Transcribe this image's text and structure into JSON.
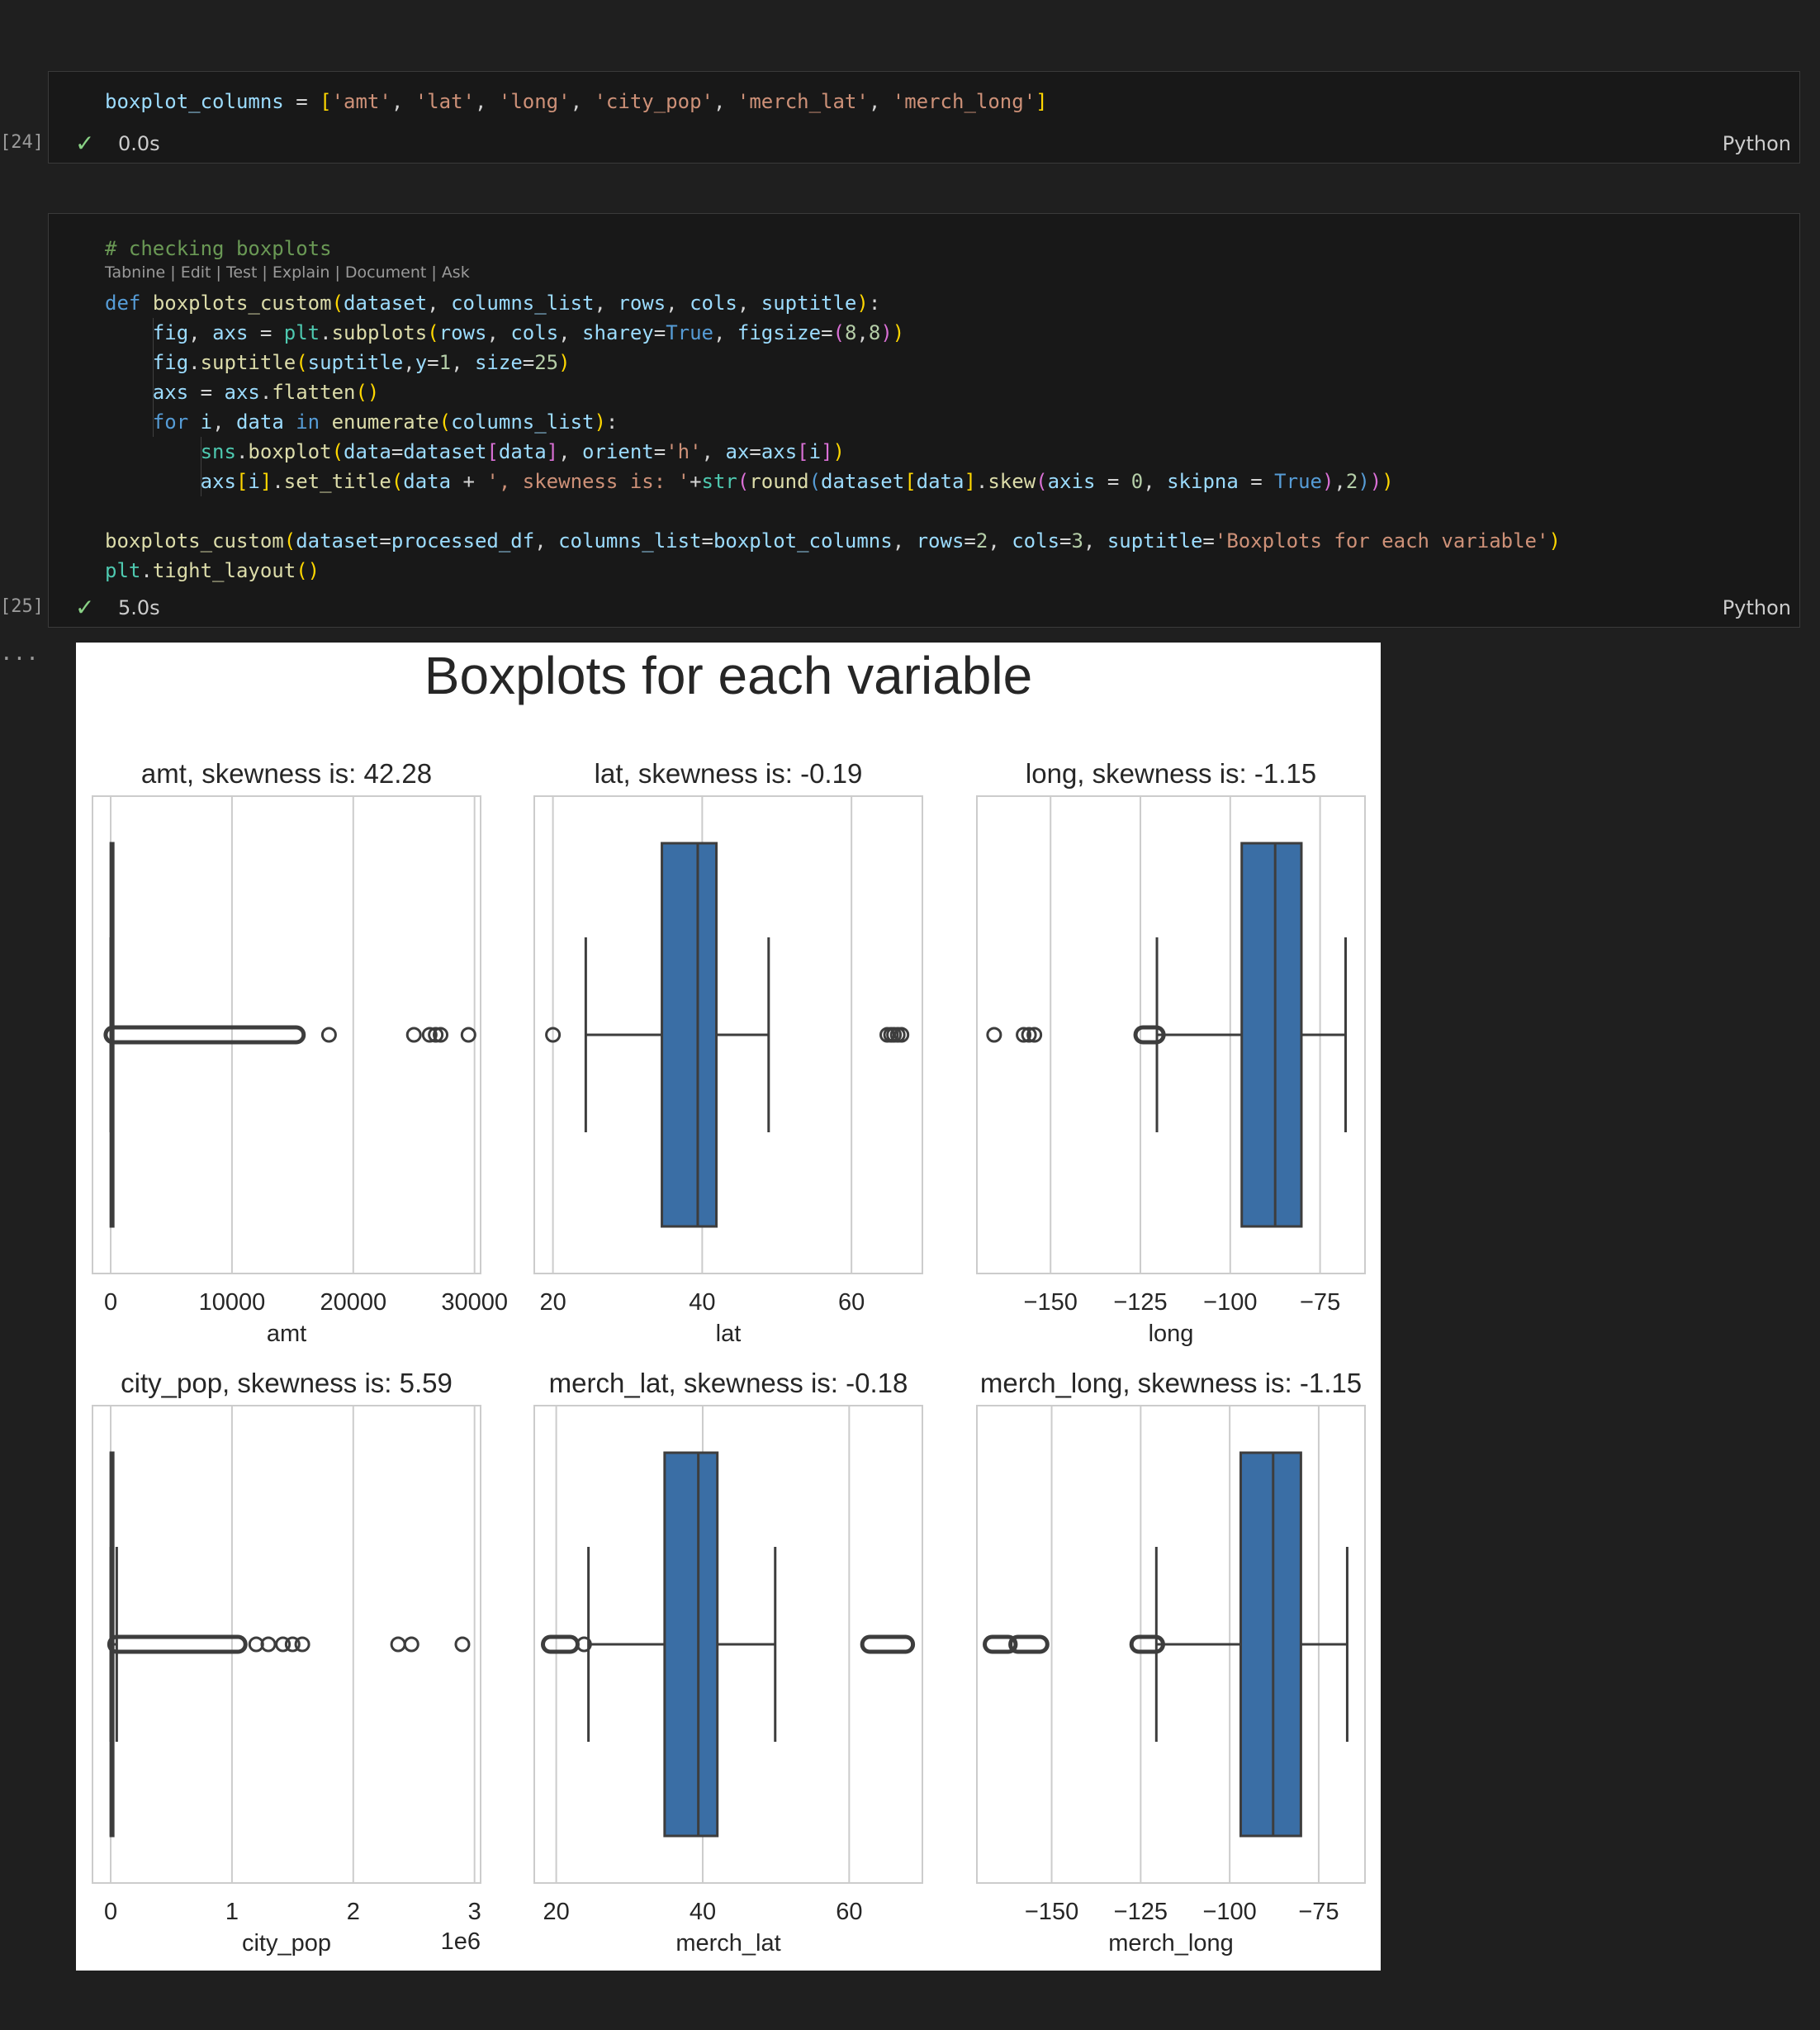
{
  "cells": [
    {
      "prompt": "[24]",
      "time": "0.0s",
      "lang": "Python",
      "code_lines": [
        [
          [
            "boxplot_columns",
            "v"
          ],
          [
            " = ",
            "o"
          ],
          [
            "[",
            "b"
          ],
          [
            "'amt'",
            "s"
          ],
          [
            ", ",
            "o"
          ],
          [
            "'lat'",
            "s"
          ],
          [
            ", ",
            "o"
          ],
          [
            "'long'",
            "s"
          ],
          [
            ", ",
            "o"
          ],
          [
            "'city_pop'",
            "s"
          ],
          [
            ", ",
            "o"
          ],
          [
            "'merch_lat'",
            "s"
          ],
          [
            ", ",
            "o"
          ],
          [
            "'merch_long'",
            "s"
          ],
          [
            "]",
            "b"
          ]
        ]
      ]
    },
    {
      "prompt": "[25]",
      "time": "5.0s",
      "lang": "Python",
      "lens": "Tabnine | Edit | Test | Explain | Document | Ask",
      "code_lines": [
        [
          [
            "# checking boxplots",
            "c"
          ]
        ],
        [
          [
            "def",
            "k"
          ],
          [
            " ",
            "o"
          ],
          [
            "boxplots_custom",
            "f"
          ],
          [
            "(",
            "b"
          ],
          [
            "dataset",
            "v"
          ],
          [
            ", ",
            "o"
          ],
          [
            "columns_list",
            "v"
          ],
          [
            ", ",
            "o"
          ],
          [
            "rows",
            "v"
          ],
          [
            ", ",
            "o"
          ],
          [
            "cols",
            "v"
          ],
          [
            ", ",
            "o"
          ],
          [
            "suptitle",
            "v"
          ],
          [
            ")",
            "b"
          ],
          [
            ":",
            "o"
          ]
        ],
        [
          [
            "    fig",
            "v"
          ],
          [
            ", ",
            "o"
          ],
          [
            "axs",
            "v"
          ],
          [
            " = ",
            "o"
          ],
          [
            "plt",
            "t"
          ],
          [
            ".",
            "o"
          ],
          [
            "subplots",
            "f"
          ],
          [
            "(",
            "b"
          ],
          [
            "rows",
            "v"
          ],
          [
            ", ",
            "o"
          ],
          [
            "cols",
            "v"
          ],
          [
            ", ",
            "o"
          ],
          [
            "sharey",
            "v"
          ],
          [
            "=",
            "o"
          ],
          [
            "True",
            "k"
          ],
          [
            ", ",
            "o"
          ],
          [
            "figsize",
            "v"
          ],
          [
            "=",
            "o"
          ],
          [
            "(",
            "m"
          ],
          [
            "8",
            "n"
          ],
          [
            ",",
            "o"
          ],
          [
            "8",
            "n"
          ],
          [
            ")",
            "m"
          ],
          [
            ")",
            "b"
          ]
        ],
        [
          [
            "    fig",
            "v"
          ],
          [
            ".",
            "o"
          ],
          [
            "suptitle",
            "f"
          ],
          [
            "(",
            "b"
          ],
          [
            "suptitle",
            "v"
          ],
          [
            ",",
            "o"
          ],
          [
            "y",
            "v"
          ],
          [
            "=",
            "o"
          ],
          [
            "1",
            "n"
          ],
          [
            ", ",
            "o"
          ],
          [
            "size",
            "v"
          ],
          [
            "=",
            "o"
          ],
          [
            "25",
            "n"
          ],
          [
            ")",
            "b"
          ]
        ],
        [
          [
            "    axs",
            "v"
          ],
          [
            " = ",
            "o"
          ],
          [
            "axs",
            "v"
          ],
          [
            ".",
            "o"
          ],
          [
            "flatten",
            "f"
          ],
          [
            "()",
            "b"
          ]
        ],
        [
          [
            "    ",
            "o"
          ],
          [
            "for",
            "k"
          ],
          [
            " ",
            "o"
          ],
          [
            "i",
            "v"
          ],
          [
            ", ",
            "o"
          ],
          [
            "data",
            "v"
          ],
          [
            " ",
            "o"
          ],
          [
            "in",
            "k"
          ],
          [
            " ",
            "o"
          ],
          [
            "enumerate",
            "f"
          ],
          [
            "(",
            "b"
          ],
          [
            "columns_list",
            "v"
          ],
          [
            ")",
            "b"
          ],
          [
            ":",
            "o"
          ]
        ],
        [
          [
            "        ",
            "o"
          ],
          [
            "sns",
            "t"
          ],
          [
            ".",
            "o"
          ],
          [
            "boxplot",
            "f"
          ],
          [
            "(",
            "b"
          ],
          [
            "data",
            "v"
          ],
          [
            "=",
            "o"
          ],
          [
            "dataset",
            "v"
          ],
          [
            "[",
            "m"
          ],
          [
            "data",
            "v"
          ],
          [
            "]",
            "m"
          ],
          [
            ", ",
            "o"
          ],
          [
            "orient",
            "v"
          ],
          [
            "=",
            "o"
          ],
          [
            "'h'",
            "s"
          ],
          [
            ", ",
            "o"
          ],
          [
            "ax",
            "v"
          ],
          [
            "=",
            "o"
          ],
          [
            "axs",
            "v"
          ],
          [
            "[",
            "m"
          ],
          [
            "i",
            "v"
          ],
          [
            "]",
            "m"
          ],
          [
            ")",
            "b"
          ]
        ],
        [
          [
            "        axs",
            "v"
          ],
          [
            "[",
            "b"
          ],
          [
            "i",
            "v"
          ],
          [
            "]",
            "b"
          ],
          [
            ".",
            "o"
          ],
          [
            "set_title",
            "f"
          ],
          [
            "(",
            "b"
          ],
          [
            "data",
            "v"
          ],
          [
            " + ",
            "o"
          ],
          [
            "', skewness is: '",
            "s"
          ],
          [
            "+",
            "o"
          ],
          [
            "str",
            "t"
          ],
          [
            "(",
            "m"
          ],
          [
            "round",
            "f"
          ],
          [
            "(",
            "k"
          ],
          [
            "dataset",
            "v"
          ],
          [
            "[",
            "b"
          ],
          [
            "data",
            "v"
          ],
          [
            "]",
            "b"
          ],
          [
            ".",
            "o"
          ],
          [
            "skew",
            "f"
          ],
          [
            "(",
            "m"
          ],
          [
            "axis",
            "v"
          ],
          [
            " = ",
            "o"
          ],
          [
            "0",
            "n"
          ],
          [
            ", ",
            "o"
          ],
          [
            "skipna",
            "v"
          ],
          [
            " = ",
            "o"
          ],
          [
            "True",
            "k"
          ],
          [
            ")",
            "m"
          ],
          [
            ",",
            "o"
          ],
          [
            "2",
            "n"
          ],
          [
            ")",
            "k"
          ],
          [
            ")",
            "m"
          ],
          [
            ")",
            "b"
          ]
        ],
        [],
        [
          [
            "boxplots_custom",
            "f"
          ],
          [
            "(",
            "b"
          ],
          [
            "dataset",
            "v"
          ],
          [
            "=",
            "o"
          ],
          [
            "processed_df",
            "v"
          ],
          [
            ", ",
            "o"
          ],
          [
            "columns_list",
            "v"
          ],
          [
            "=",
            "o"
          ],
          [
            "boxplot_columns",
            "v"
          ],
          [
            ", ",
            "o"
          ],
          [
            "rows",
            "v"
          ],
          [
            "=",
            "o"
          ],
          [
            "2",
            "n"
          ],
          [
            ", ",
            "o"
          ],
          [
            "cols",
            "v"
          ],
          [
            "=",
            "o"
          ],
          [
            "3",
            "n"
          ],
          [
            ", ",
            "o"
          ],
          [
            "suptitle",
            "v"
          ],
          [
            "=",
            "o"
          ],
          [
            "'Boxplots for each variable'",
            "s"
          ],
          [
            ")",
            "b"
          ]
        ],
        [
          [
            "plt",
            "t"
          ],
          [
            ".",
            "o"
          ],
          [
            "tight_layout",
            "f"
          ],
          [
            "()",
            "b"
          ]
        ]
      ]
    }
  ],
  "output_prompt": "...",
  "chart_data": {
    "type": "boxplot",
    "title": "Boxplots for each variable",
    "panels": [
      {
        "title": "amt, skewness is: 42.28",
        "xlabel": "amt",
        "ticks": [
          0,
          10000,
          20000,
          30000
        ],
        "tick_labels": [
          "0",
          "10000",
          "20000",
          "30000"
        ],
        "range": [
          -1500,
          30500
        ],
        "offset_text": "",
        "box": {
          "q1": 9,
          "median": 48,
          "q3": 84,
          "whisker_low": 1,
          "whisker_high": 196
        },
        "outlier_band": [
          196,
          15300
        ],
        "outliers": [
          18000,
          25000,
          26300,
          26800,
          27200,
          29500
        ],
        "box_color": "#3a6ea5"
      },
      {
        "title": "lat, skewness is: -0.19",
        "xlabel": "lat",
        "ticks": [
          20,
          40,
          60
        ],
        "tick_labels": [
          "20",
          "40",
          "60"
        ],
        "range": [
          17.5,
          69.5
        ],
        "offset_text": "",
        "box": {
          "q1": 34.6,
          "median": 39.4,
          "q3": 41.9,
          "whisker_low": 24.4,
          "whisker_high": 48.9
        },
        "outlier_band": [],
        "outliers": [
          20.0,
          64.8,
          65.3,
          65.7,
          66.2,
          66.7
        ],
        "box_color": "#3a6ea5"
      },
      {
        "title": "long, skewness is: -1.15",
        "xlabel": "long",
        "ticks": [
          -150,
          -125,
          -100,
          -75
        ],
        "tick_labels": [
          "−150",
          "−125",
          "−100",
          "−75"
        ],
        "range": [
          -170.5,
          -62.5
        ],
        "offset_text": "",
        "box": {
          "q1": -96.8,
          "median": -87.5,
          "q3": -80.2,
          "whisker_low": -120.4,
          "whisker_high": -67.9
        },
        "outlier_band": [
          -124.3,
          -120.6
        ],
        "outliers": [
          -165.7,
          -157.5,
          -156.0,
          -154.5
        ],
        "box_color": "#3a6ea5"
      },
      {
        "title": "city_pop, skewness is: 5.59",
        "xlabel": "city_pop",
        "ticks": [
          0,
          1,
          2,
          3
        ],
        "tick_labels": [
          "0",
          "1",
          "2",
          "3"
        ],
        "range": [
          -0.15,
          3.05
        ],
        "offset_text": "1e6",
        "box": {
          "q1": 0.0007,
          "median": 0.0025,
          "q3": 0.02,
          "whisker_low": 0.0,
          "whisker_high": 0.05
        },
        "outlier_band": [
          0.05,
          1.05
        ],
        "outliers": [
          1.2,
          1.3,
          1.42,
          1.5,
          1.58,
          2.37,
          2.48,
          2.9
        ],
        "box_color": "#3a6ea5"
      },
      {
        "title": "merch_lat, skewness is: -0.18",
        "xlabel": "merch_lat",
        "ticks": [
          20,
          40,
          60
        ],
        "tick_labels": [
          "20",
          "40",
          "60"
        ],
        "range": [
          17.0,
          70.0
        ],
        "offset_text": "",
        "box": {
          "q1": 34.8,
          "median": 39.4,
          "q3": 42.0,
          "whisker_low": 24.4,
          "whisker_high": 49.9
        },
        "outlier_band": [
          [
            19.2,
            21.9
          ],
          [
            62.8,
            67.7
          ]
        ],
        "outliers": [
          23.8
        ],
        "box_color": "#3a6ea5"
      },
      {
        "title": "merch_long, skewness is: -1.15",
        "xlabel": "merch_long",
        "ticks": [
          -150,
          -125,
          -100,
          -75
        ],
        "tick_labels": [
          "−150",
          "−125",
          "−100",
          "−75"
        ],
        "range": [
          -171.0,
          -62.0
        ],
        "offset_text": "",
        "box": {
          "q1": -96.9,
          "median": -87.8,
          "q3": -80.0,
          "whisker_low": -120.6,
          "whisker_high": -67.0
        },
        "outlier_band": [
          [
            -166.7,
            -162.2
          ],
          [
            -159.5,
            -153.3
          ],
          [
            -125.5,
            -120.8
          ]
        ],
        "outliers": [],
        "box_color": "#3a6ea5"
      }
    ]
  }
}
